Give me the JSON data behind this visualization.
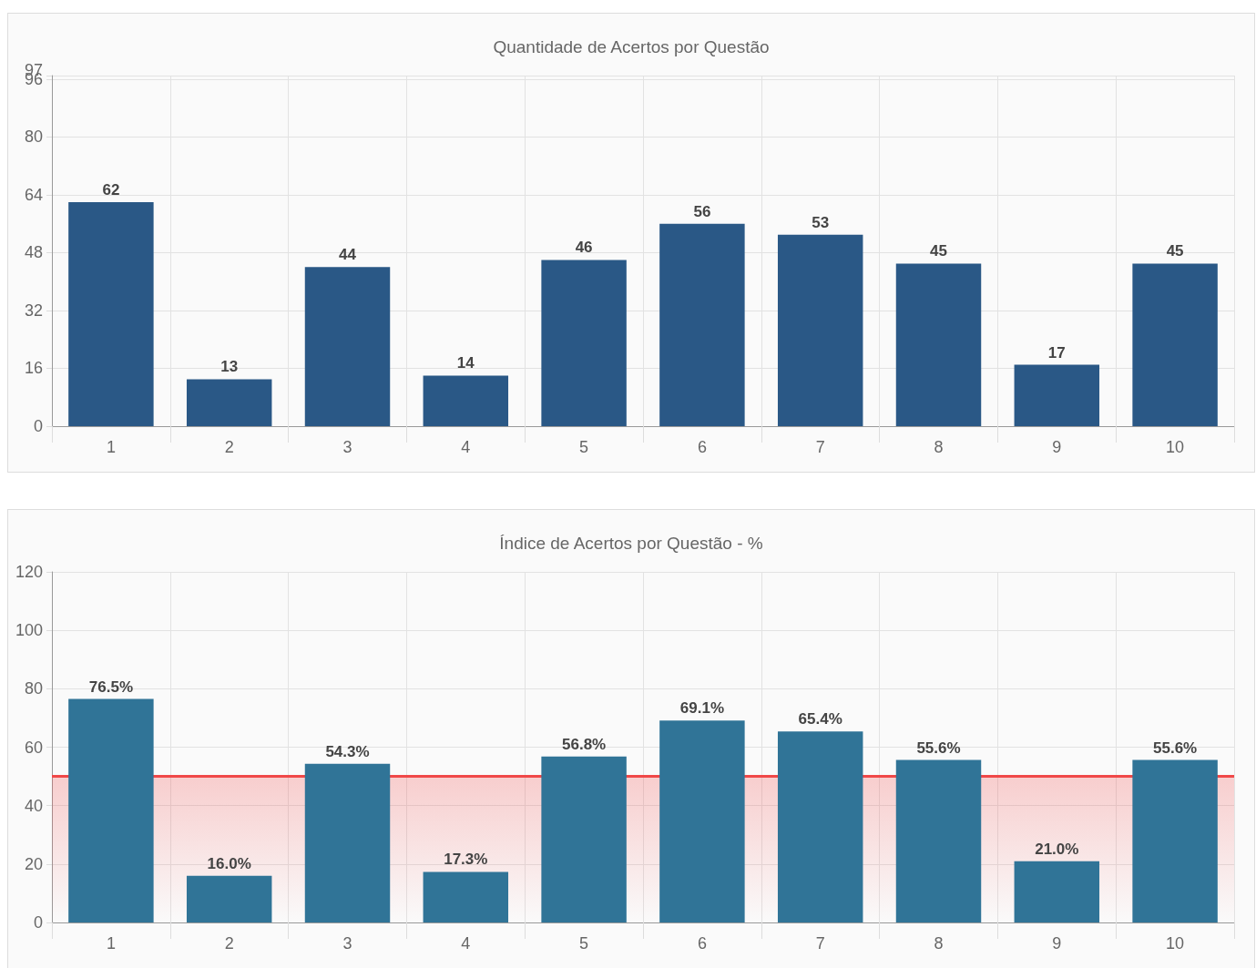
{
  "chart_data": [
    {
      "type": "bar",
      "title": "Quantidade de Acertos por Questão",
      "categories": [
        "1",
        "2",
        "3",
        "4",
        "5",
        "6",
        "7",
        "8",
        "9",
        "10"
      ],
      "values": [
        62,
        13,
        44,
        14,
        46,
        56,
        53,
        45,
        17,
        45
      ],
      "color": "#2a5886",
      "ylim": [
        0,
        97
      ],
      "yticks": [
        0,
        16,
        32,
        48,
        64,
        80,
        96,
        97
      ],
      "grid": true,
      "data_labels": true
    },
    {
      "type": "bar",
      "title": "Índice de Acertos por Questão - %",
      "categories": [
        "1",
        "2",
        "3",
        "4",
        "5",
        "6",
        "7",
        "8",
        "9",
        "10"
      ],
      "values": [
        76.5,
        16.0,
        54.3,
        17.3,
        56.8,
        69.1,
        65.4,
        55.6,
        21.0,
        55.6
      ],
      "value_labels": [
        "76.5%",
        "16.0%",
        "54.3%",
        "17.3%",
        "56.8%",
        "69.1%",
        "65.4%",
        "55.6%",
        "21.0%",
        "55.6%"
      ],
      "color": "#307497",
      "ylim": [
        0,
        120
      ],
      "yticks": [
        0,
        20,
        40,
        60,
        80,
        100,
        120
      ],
      "grid": true,
      "ref_lines": [
        {
          "axis": "y",
          "value": 50,
          "color": "#f04848"
        }
      ],
      "bands": [
        {
          "axis": "y",
          "from": 0,
          "to": 50,
          "color": "#f04848"
        }
      ]
    }
  ]
}
